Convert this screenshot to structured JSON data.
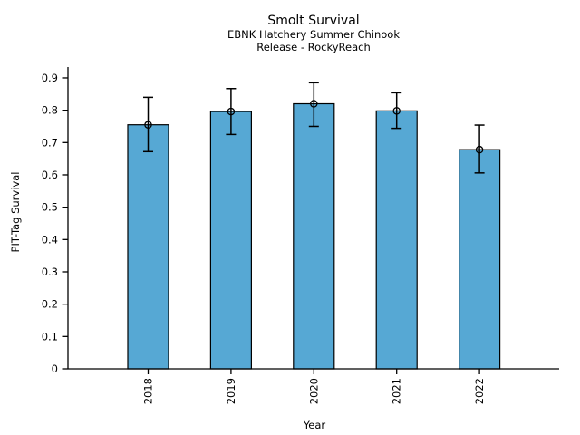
{
  "chart_data": {
    "type": "bar",
    "title": "Smolt Survival",
    "subtitle1": "EBNK Hatchery Summer Chinook",
    "subtitle2": "Release - RockyReach",
    "xlabel": "Year",
    "ylabel": "PIT-Tag Survival",
    "categories": [
      "2018",
      "2019",
      "2020",
      "2021",
      "2022"
    ],
    "values": [
      0.755,
      0.796,
      0.82,
      0.798,
      0.678
    ],
    "error_low": [
      0.672,
      0.725,
      0.75,
      0.744,
      0.606
    ],
    "error_high": [
      0.84,
      0.867,
      0.885,
      0.854,
      0.754
    ],
    "yticks": [
      0,
      0.1,
      0.2,
      0.3,
      0.4,
      0.5,
      0.6,
      0.7,
      0.8,
      0.9
    ],
    "ytick_labels": [
      "0",
      "0.1",
      "0.2",
      "0.3",
      "0.4",
      "0.5",
      "0.6",
      "0.7",
      "0.8",
      "0.9"
    ],
    "ylim": [
      0,
      0.93
    ],
    "grid": false,
    "legend": null,
    "marker": "open-circle",
    "error_bars": true,
    "bar_color": "#56a8d4",
    "edge_color": "#000000",
    "axis_color": "#000000",
    "background": "#ffffff"
  }
}
